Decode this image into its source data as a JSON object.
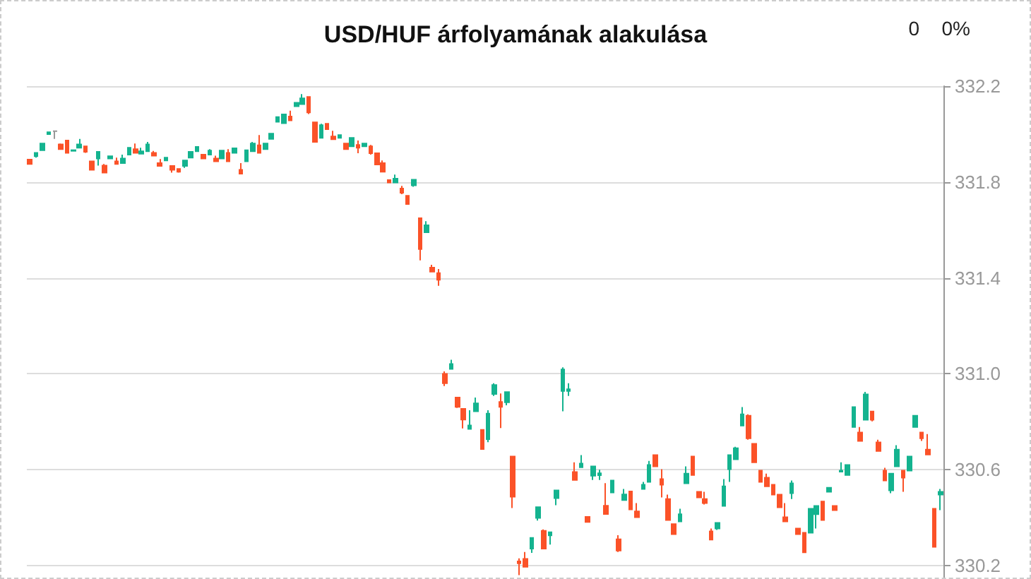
{
  "chart_data": {
    "type": "candlestick",
    "title": "USD/HUF árfolyamának alakulása",
    "annotations": [
      "0",
      "0%"
    ],
    "categories": [
      null,
      null,
      null,
      null,
      null,
      null,
      null,
      null,
      null,
      null,
      null,
      null,
      null,
      null,
      null,
      null,
      null,
      null,
      null,
      null,
      null,
      null,
      null,
      null,
      null,
      null,
      null,
      null,
      null,
      null,
      null,
      null,
      null,
      null,
      null,
      null,
      null,
      null,
      null,
      null,
      null,
      null,
      null,
      null,
      null,
      null,
      null,
      null,
      null,
      null,
      null,
      null,
      null,
      null,
      null,
      null,
      null,
      null,
      null,
      null,
      null,
      null,
      null,
      null,
      null,
      null,
      null,
      null,
      null,
      null,
      null,
      null,
      null,
      null,
      null,
      null,
      null,
      null,
      null,
      null,
      null,
      null,
      null,
      null,
      null,
      null,
      null,
      null,
      null,
      null,
      null,
      null,
      null,
      null,
      null,
      null,
      null,
      null,
      null,
      null,
      null,
      null,
      null,
      null,
      null,
      null,
      null,
      null,
      null,
      null,
      null,
      null,
      null,
      null,
      null,
      null,
      null,
      null,
      null,
      null,
      null,
      null,
      null,
      null,
      null,
      null,
      null,
      null,
      null,
      null,
      null,
      null,
      null,
      null,
      null,
      null,
      null,
      null,
      null,
      null,
      null,
      null,
      null,
      null,
      null,
      null,
      null,
      null
    ],
    "ohlc": [
      [
        331.894,
        331.894,
        331.875,
        331.875
      ],
      [
        331.908,
        331.922,
        331.902,
        331.922
      ],
      [
        331.933,
        331.961,
        331.933,
        331.961
      ],
      [
        332.0,
        332.008,
        332.0,
        332.008
      ],
      [
        332.012,
        332.014,
        331.98,
        332.012
      ],
      [
        331.957,
        331.961,
        331.937,
        331.937
      ],
      [
        331.973,
        331.973,
        331.922,
        331.922
      ],
      [
        331.93,
        331.933,
        331.93,
        331.933
      ],
      [
        331.943,
        331.98,
        331.943,
        331.957
      ],
      [
        331.949,
        331.949,
        331.922,
        331.926
      ],
      [
        331.886,
        331.886,
        331.851,
        331.851
      ],
      [
        331.898,
        331.926,
        331.869,
        331.926
      ],
      [
        331.869,
        331.875,
        331.839,
        331.839
      ],
      [
        331.898,
        331.908,
        331.898,
        331.908
      ],
      [
        331.886,
        331.902,
        331.875,
        331.875
      ],
      [
        331.879,
        331.914,
        331.879,
        331.898
      ],
      [
        331.914,
        331.943,
        331.914,
        331.943
      ],
      [
        331.937,
        331.961,
        331.922,
        331.922
      ],
      [
        331.918,
        331.943,
        331.918,
        331.928
      ],
      [
        331.928,
        331.967,
        331.928,
        331.957
      ],
      [
        331.922,
        331.93,
        331.91,
        331.91
      ],
      [
        331.879,
        331.896,
        331.867,
        331.867
      ],
      [
        331.89,
        331.902,
        331.89,
        331.902
      ],
      [
        331.867,
        331.867,
        331.839,
        331.851
      ],
      [
        331.855,
        331.855,
        331.839,
        331.843
      ],
      [
        331.867,
        331.89,
        331.859,
        331.89
      ],
      [
        331.902,
        331.926,
        331.902,
        331.926
      ],
      [
        331.928,
        331.947,
        331.928,
        331.947
      ],
      [
        331.914,
        331.914,
        331.898,
        331.898
      ],
      [
        331.914,
        331.937,
        331.914,
        331.931
      ],
      [
        331.898,
        331.91,
        331.886,
        331.886
      ],
      [
        331.898,
        331.931,
        331.898,
        331.931
      ],
      [
        331.922,
        331.937,
        331.886,
        331.886
      ],
      [
        331.922,
        331.941,
        331.922,
        331.941
      ],
      [
        331.851,
        331.879,
        331.835,
        331.835
      ],
      [
        331.886,
        331.933,
        331.886,
        331.933
      ],
      [
        331.928,
        331.967,
        331.928,
        331.961
      ],
      [
        331.953,
        331.996,
        331.922,
        331.922
      ],
      [
        331.937,
        331.961,
        331.937,
        331.961
      ],
      [
        331.98,
        332.002,
        331.98,
        332.002
      ],
      [
        332.051,
        332.071,
        332.051,
        332.071
      ],
      [
        332.045,
        332.082,
        332.045,
        332.082
      ],
      [
        332.073,
        332.098,
        332.057,
        332.057
      ],
      [
        332.116,
        332.131,
        332.116,
        332.131
      ],
      [
        332.125,
        332.167,
        332.125,
        332.149
      ],
      [
        332.155,
        332.155,
        332.084,
        332.09
      ],
      [
        332.049,
        332.049,
        331.967,
        331.967
      ],
      [
        331.984,
        332.043,
        331.984,
        332.037
      ],
      [
        332.043,
        332.043,
        332.02,
        332.02
      ],
      [
        331.99,
        332.014,
        331.978,
        331.978
      ],
      [
        331.984,
        331.996,
        331.984,
        331.996
      ],
      [
        331.961,
        331.961,
        331.937,
        331.937
      ],
      [
        331.949,
        331.984,
        331.949,
        331.984
      ],
      [
        331.955,
        331.973,
        331.92,
        331.943
      ],
      [
        331.949,
        331.961,
        331.949,
        331.961
      ],
      [
        331.949,
        331.955,
        331.914,
        331.92
      ],
      [
        331.92,
        331.92,
        331.873,
        331.873
      ],
      [
        331.879,
        331.89,
        331.843,
        331.843
      ],
      [
        331.808,
        331.808,
        331.798,
        331.798
      ],
      [
        331.798,
        331.831,
        331.798,
        331.814
      ],
      [
        331.773,
        331.784,
        331.749,
        331.755
      ],
      [
        331.743,
        331.743,
        331.708,
        331.708
      ],
      [
        331.786,
        331.81,
        331.78,
        331.81
      ],
      [
        331.649,
        331.649,
        331.473,
        331.52
      ],
      [
        331.59,
        331.637,
        331.59,
        331.62
      ],
      [
        331.443,
        331.455,
        331.426,
        331.426
      ],
      [
        331.42,
        331.437,
        331.367,
        331.392
      ],
      [
        331.0,
        331.01,
        330.949,
        330.961
      ],
      [
        331.02,
        331.059,
        331.02,
        331.041
      ],
      [
        330.901,
        330.901,
        330.858,
        330.862
      ],
      [
        330.854,
        330.854,
        330.772,
        330.809
      ],
      [
        330.77,
        330.848,
        330.77,
        330.785
      ],
      [
        330.844,
        330.901,
        330.844,
        330.877
      ],
      [
        330.766,
        330.766,
        330.686,
        330.686
      ],
      [
        330.727,
        330.848,
        330.715,
        330.834
      ],
      [
        330.916,
        330.961,
        330.908,
        330.953
      ],
      [
        330.883,
        330.918,
        330.774,
        330.862
      ],
      [
        330.881,
        330.924,
        330.869,
        330.924
      ],
      [
        330.655,
        330.655,
        330.44,
        330.487
      ],
      [
        330.218,
        330.23,
        330.16,
        330.21
      ],
      [
        330.228,
        330.257,
        330.195,
        330.195
      ],
      [
        330.271,
        330.316,
        330.253,
        330.316
      ],
      [
        330.399,
        330.444,
        330.388,
        330.444
      ],
      [
        330.345,
        330.351,
        330.271,
        330.271
      ],
      [
        330.326,
        330.339,
        330.288,
        330.339
      ],
      [
        330.481,
        330.514,
        330.452,
        330.514
      ],
      [
        330.928,
        331.027,
        330.844,
        331.018
      ],
      [
        330.928,
        330.961,
        330.908,
        330.936
      ],
      [
        330.59,
        330.631,
        330.557,
        330.557
      ],
      [
        330.61,
        330.661,
        330.61,
        330.626
      ],
      [
        330.403,
        330.403,
        330.382,
        330.382
      ],
      [
        330.575,
        330.614,
        330.557,
        330.614
      ],
      [
        330.577,
        330.6,
        330.557,
        330.585
      ],
      [
        330.45,
        330.544,
        330.415,
        330.415
      ],
      [
        330.505,
        330.555,
        330.505,
        330.555
      ],
      [
        330.31,
        330.327,
        330.257,
        330.263
      ],
      [
        330.473,
        330.52,
        330.473,
        330.497
      ],
      [
        330.509,
        330.509,
        330.434,
        330.434
      ],
      [
        330.426,
        330.461,
        330.402,
        330.402
      ],
      [
        330.52,
        330.549,
        330.52,
        330.537
      ],
      [
        330.549,
        330.637,
        330.549,
        330.62
      ],
      [
        330.661,
        330.661,
        330.614,
        330.614
      ],
      [
        330.561,
        330.602,
        330.484,
        330.537
      ],
      [
        330.478,
        330.496,
        330.39,
        330.39
      ],
      [
        330.373,
        330.373,
        330.331,
        330.331
      ],
      [
        330.384,
        330.437,
        330.384,
        330.414
      ],
      [
        330.543,
        330.614,
        330.543,
        330.584
      ],
      [
        330.655,
        330.655,
        330.578,
        330.578
      ],
      [
        330.508,
        330.508,
        330.484,
        330.484
      ],
      [
        330.478,
        330.508,
        330.455,
        330.461
      ],
      [
        330.343,
        330.355,
        330.308,
        330.308
      ],
      [
        330.355,
        330.378,
        330.349,
        330.378
      ],
      [
        330.449,
        330.561,
        330.449,
        330.531
      ],
      [
        330.602,
        330.661,
        330.549,
        330.661
      ],
      [
        330.643,
        330.696,
        330.643,
        330.69
      ],
      [
        330.784,
        330.861,
        330.784,
        330.831
      ],
      [
        330.825,
        330.831,
        330.725,
        330.731
      ],
      [
        330.708,
        330.708,
        330.631,
        330.631
      ],
      [
        330.596,
        330.596,
        330.549,
        330.549
      ],
      [
        330.567,
        330.584,
        330.531,
        330.531
      ],
      [
        330.537,
        330.537,
        330.496,
        330.496
      ],
      [
        330.496,
        330.496,
        330.443,
        330.443
      ],
      [
        330.402,
        330.461,
        330.384,
        330.384
      ],
      [
        330.502,
        330.555,
        330.478,
        330.543
      ],
      [
        330.355,
        330.355,
        330.331,
        330.331
      ],
      [
        330.337,
        330.337,
        330.255,
        330.255
      ],
      [
        330.337,
        330.437,
        330.337,
        330.437
      ],
      [
        330.414,
        330.449,
        330.355,
        330.449
      ],
      [
        330.467,
        330.467,
        330.39,
        330.39
      ],
      [
        330.508,
        330.525,
        330.508,
        330.525
      ],
      [
        330.449,
        330.449,
        330.431,
        330.431
      ],
      [
        330.592,
        330.631,
        330.592,
        330.596
      ],
      [
        330.578,
        330.62,
        330.578,
        330.62
      ],
      [
        330.778,
        330.861,
        330.778,
        330.861
      ],
      [
        330.755,
        330.778,
        330.72,
        330.72
      ],
      [
        330.808,
        330.925,
        330.808,
        330.914
      ],
      [
        330.843,
        330.843,
        330.802,
        330.808
      ],
      [
        330.714,
        330.725,
        330.678,
        330.678
      ],
      [
        330.596,
        330.608,
        330.555,
        330.555
      ],
      [
        330.514,
        330.584,
        330.502,
        330.584
      ],
      [
        330.614,
        330.702,
        330.614,
        330.684
      ],
      [
        330.596,
        330.596,
        330.508,
        330.567
      ],
      [
        330.596,
        330.655,
        330.596,
        330.655
      ],
      [
        330.778,
        330.825,
        330.778,
        330.825
      ],
      [
        330.755,
        330.755,
        330.72,
        330.731
      ],
      [
        330.684,
        330.749,
        330.663,
        330.663
      ],
      [
        330.437,
        330.437,
        330.278,
        330.278
      ],
      [
        330.496,
        330.52,
        330.431,
        330.508
      ]
    ],
    "colors": [
      "#fb5228",
      "#14b38f",
      "#14b38f",
      "#14b38f",
      "#999999",
      "#fb5228",
      "#fb5228",
      "#14b38f",
      "#14b38f",
      "#fb5228",
      "#fb5228",
      "#14b38f",
      "#fb5228",
      "#14b38f",
      "#fb5228",
      "#14b38f",
      "#14b38f",
      "#fb5228",
      "#14b38f",
      "#14b38f",
      "#fb5228",
      "#fb5228",
      "#14b38f",
      "#fb5228",
      "#fb5228",
      "#14b38f",
      "#14b38f",
      "#14b38f",
      "#fb5228",
      "#14b38f",
      "#fb5228",
      "#14b38f",
      "#fb5228",
      "#14b38f",
      "#fb5228",
      "#14b38f",
      "#14b38f",
      "#fb5228",
      "#14b38f",
      "#14b38f",
      "#14b38f",
      "#14b38f",
      "#fb5228",
      "#14b38f",
      "#14b38f",
      "#fb5228",
      "#fb5228",
      "#14b38f",
      "#fb5228",
      "#fb5228",
      "#14b38f",
      "#fb5228",
      "#14b38f",
      "#fb5228",
      "#14b38f",
      "#fb5228",
      "#fb5228",
      "#fb5228",
      "#fb5228",
      "#14b38f",
      "#fb5228",
      "#fb5228",
      "#14b38f",
      "#fb5228",
      "#14b38f",
      "#fb5228",
      "#fb5228",
      "#fb5228",
      "#14b38f",
      "#fb5228",
      "#fb5228",
      "#14b38f",
      "#14b38f",
      "#fb5228",
      "#14b38f",
      "#14b38f",
      "#fb5228",
      "#14b38f",
      "#fb5228",
      "#fb5228",
      "#fb5228",
      "#14b38f",
      "#14b38f",
      "#fb5228",
      "#14b38f",
      "#14b38f",
      "#14b38f",
      "#14b38f",
      "#fb5228",
      "#14b38f",
      "#fb5228",
      "#14b38f",
      "#14b38f",
      "#fb5228",
      "#14b38f",
      "#fb5228",
      "#14b38f",
      "#fb5228",
      "#fb5228",
      "#14b38f",
      "#14b38f",
      "#fb5228",
      "#fb5228",
      "#fb5228",
      "#fb5228",
      "#14b38f",
      "#14b38f",
      "#fb5228",
      "#fb5228",
      "#fb5228",
      "#fb5228",
      "#14b38f",
      "#14b38f",
      "#14b38f",
      "#14b38f",
      "#14b38f",
      "#fb5228",
      "#fb5228",
      "#fb5228",
      "#fb5228",
      "#fb5228",
      "#fb5228",
      "#fb5228",
      "#14b38f",
      "#fb5228",
      "#fb5228",
      "#14b38f",
      "#14b38f",
      "#fb5228",
      "#14b38f",
      "#fb5228",
      "#14b38f",
      "#14b38f",
      "#14b38f",
      "#fb5228",
      "#14b38f",
      "#fb5228",
      "#fb5228",
      "#fb5228",
      "#14b38f",
      "#14b38f",
      "#fb5228",
      "#14b38f",
      "#14b38f",
      "#fb5228",
      "#fb5228",
      "#fb5228",
      "#14b38f"
    ],
    "ylim": [
      330.15,
      332.2
    ],
    "yticks": [
      330.2,
      330.6,
      {
        "value": 331,
        "label": "331.0"
      },
      331.4,
      331.8,
      332.2
    ],
    "grid": "y",
    "tick_labels": "y"
  }
}
